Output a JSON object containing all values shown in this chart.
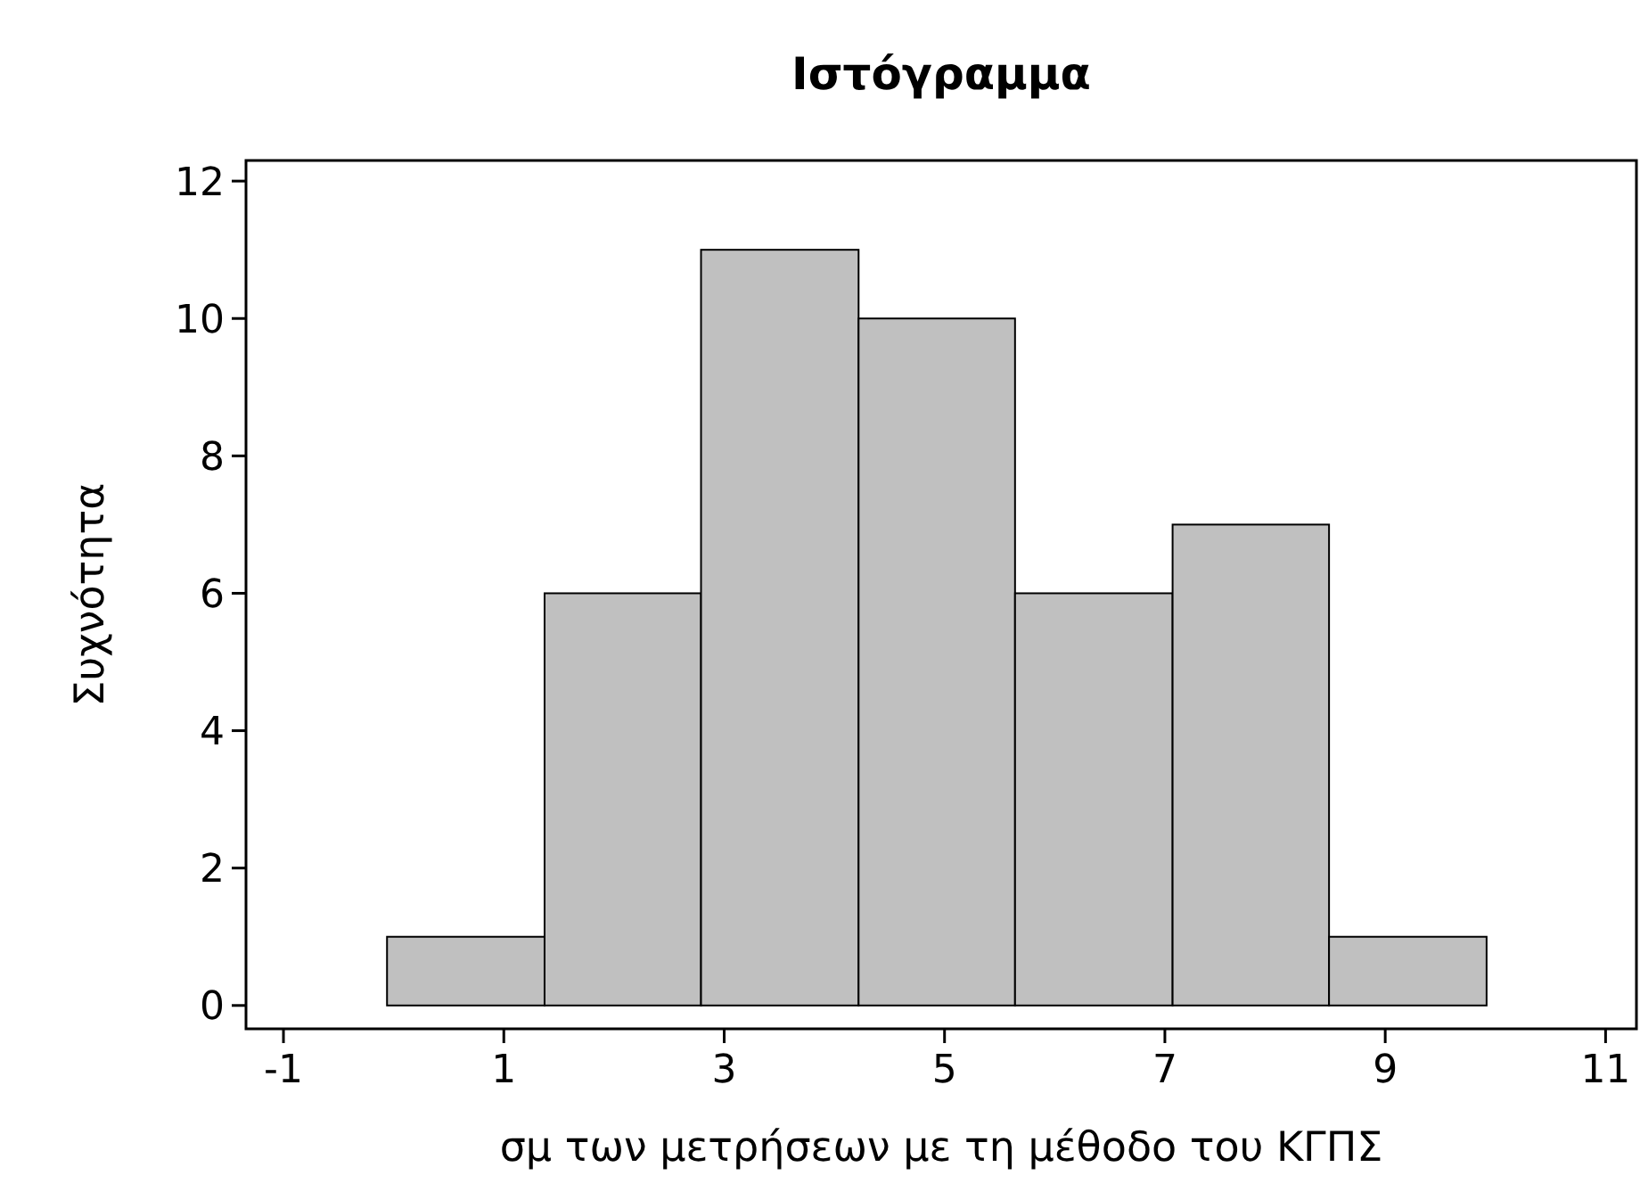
{
  "chart_data": {
    "type": "histogram",
    "title": "Ιστόγραμμα",
    "xlabel": "σμ των μετρήσεων με τη μέθοδο του ΚΓΠΣ",
    "ylabel": "Συχνότητα",
    "bins": [
      -0.06,
      1.37,
      2.79,
      4.22,
      5.64,
      7.07,
      8.49,
      9.92
    ],
    "values": [
      1,
      6,
      11,
      10,
      6,
      7,
      1
    ],
    "color": "#c0c0c0",
    "xlim": [
      -1.34,
      11.28
    ],
    "xticks": [
      -1,
      1,
      3,
      5,
      7,
      9,
      11
    ],
    "ylim": [
      -0.34,
      12.3
    ],
    "yticks": [
      0,
      2,
      4,
      6,
      8,
      10,
      12
    ],
    "grid": false
  }
}
